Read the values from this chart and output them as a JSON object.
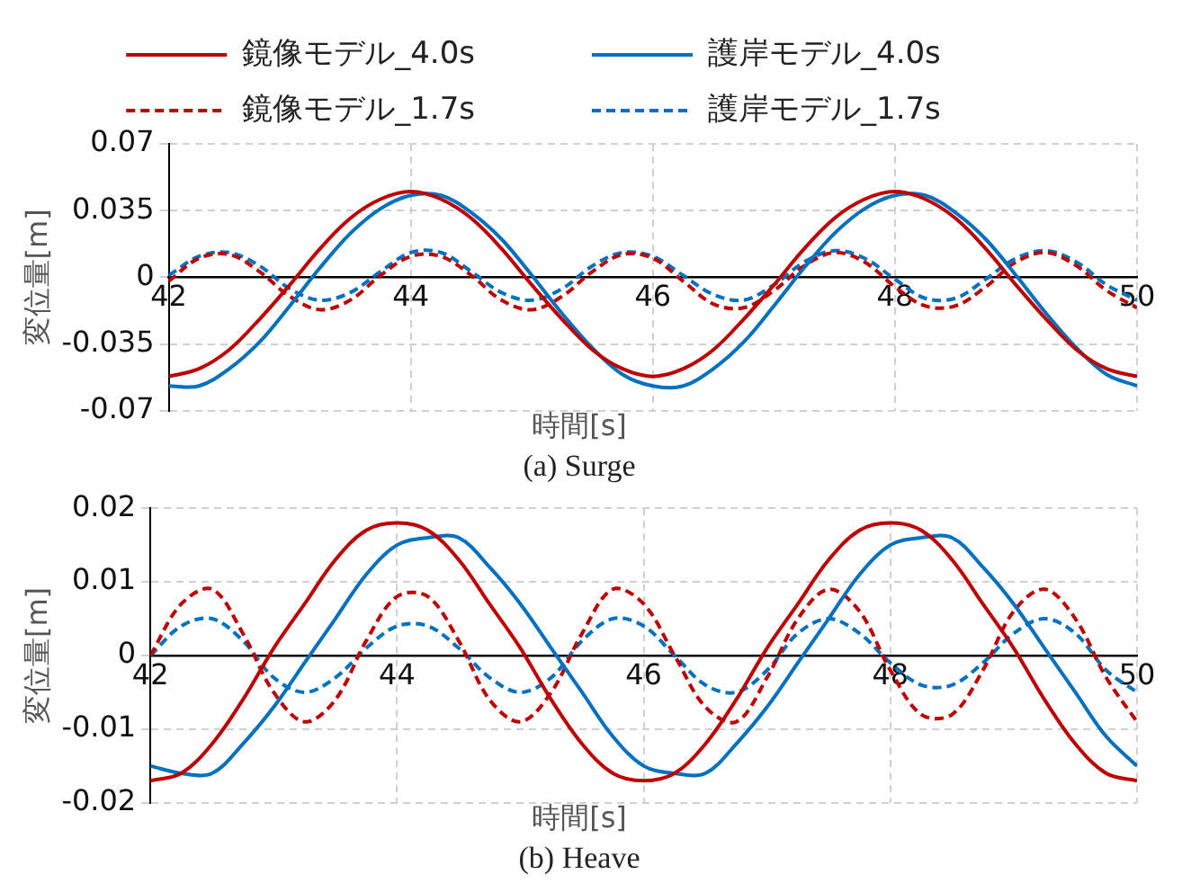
{
  "chart_data": [
    {
      "type": "line",
      "title": "(a) Surge",
      "xlabel": "時間[s]",
      "ylabel": "変位量[m]",
      "x": [
        42,
        42.25,
        42.5,
        42.75,
        43,
        43.25,
        43.5,
        43.75,
        44,
        44.25,
        44.5,
        44.75,
        45,
        45.25,
        45.5,
        45.75,
        46,
        46.25,
        46.5,
        46.75,
        47,
        47.25,
        47.5,
        47.75,
        48,
        48.25,
        48.5,
        48.75,
        49,
        49.25,
        49.5,
        49.75,
        50
      ],
      "xlim": [
        42,
        50
      ],
      "xticks": [
        42,
        44,
        46,
        48,
        50
      ],
      "ylim": [
        -0.07,
        0.07
      ],
      "yticks": [
        -0.07,
        -0.035,
        0,
        0.035,
        0.07
      ],
      "grid": true,
      "legend": "top",
      "marker": "none",
      "series": [
        {
          "name": "鏡像モデル_4.0s",
          "color": "#c00000",
          "line_style": "solid",
          "values": [
            -0.052,
            -0.048,
            -0.038,
            -0.022,
            -0.004,
            0.015,
            0.031,
            0.041,
            0.045,
            0.041,
            0.031,
            0.015,
            -0.004,
            -0.022,
            -0.038,
            -0.048,
            -0.052,
            -0.048,
            -0.038,
            -0.022,
            -0.004,
            0.015,
            0.031,
            0.041,
            0.045,
            0.041,
            0.031,
            0.015,
            -0.004,
            -0.022,
            -0.038,
            -0.048,
            -0.052
          ]
        },
        {
          "name": "護岸モデル_4.0s",
          "color": "#0070c0",
          "line_style": "solid",
          "values": [
            -0.057,
            -0.057,
            -0.048,
            -0.034,
            -0.015,
            0.005,
            0.023,
            0.036,
            0.043,
            0.043,
            0.034,
            0.02,
            0.001,
            -0.019,
            -0.037,
            -0.051,
            -0.057,
            -0.057,
            -0.048,
            -0.034,
            -0.015,
            0.005,
            0.023,
            0.036,
            0.043,
            0.043,
            0.034,
            0.02,
            0.001,
            -0.019,
            -0.037,
            -0.051,
            -0.057
          ]
        },
        {
          "name": "鏡像モデル_1.7s",
          "color": "#c00000",
          "line_style": "dashed",
          "values": [
            -0.002,
            0.01,
            0.012,
            0.003,
            -0.01,
            -0.017,
            -0.012,
            0.001,
            0.011,
            0.011,
            0.001,
            -0.012,
            -0.017,
            -0.01,
            0.003,
            0.012,
            0.01,
            -0.002,
            -0.014,
            -0.016,
            -0.007,
            0.006,
            0.013,
            0.008,
            -0.005,
            -0.015,
            -0.015,
            -0.005,
            0.008,
            0.013,
            0.006,
            -0.007,
            -0.016
          ]
        },
        {
          "name": "護岸モデル_1.7s",
          "color": "#0070c0",
          "line_style": "dashed",
          "values": [
            0.001,
            0.011,
            0.013,
            0.006,
            -0.006,
            -0.012,
            -0.008,
            0.003,
            0.013,
            0.013,
            0.003,
            -0.008,
            -0.012,
            -0.006,
            0.006,
            0.013,
            0.011,
            0.001,
            -0.009,
            -0.012,
            -0.004,
            0.008,
            0.014,
            0.01,
            -0.001,
            -0.011,
            -0.011,
            -0.001,
            0.01,
            0.014,
            0.008,
            -0.004,
            -0.012
          ]
        }
      ]
    },
    {
      "type": "line",
      "title": "(b) Heave",
      "xlabel": "時間[s]",
      "ylabel": "変位量[m]",
      "x": [
        42,
        42.25,
        42.5,
        42.75,
        43,
        43.25,
        43.5,
        43.75,
        44,
        44.25,
        44.5,
        44.75,
        45,
        45.25,
        45.5,
        45.75,
        46,
        46.25,
        46.5,
        46.75,
        47,
        47.25,
        47.5,
        47.75,
        48,
        48.25,
        48.5,
        48.75,
        49,
        49.25,
        49.5,
        49.75,
        50
      ],
      "xlim": [
        42,
        50
      ],
      "xticks": [
        42,
        44,
        46,
        48,
        50
      ],
      "ylim": [
        -0.02,
        0.02
      ],
      "yticks": [
        -0.02,
        -0.01,
        0,
        0.01,
        0.02
      ],
      "grid": true,
      "marker": "none",
      "series": [
        {
          "color": "#c00000",
          "line_style": "solid",
          "values": [
            -0.017,
            -0.016,
            -0.012,
            -0.006,
            0.001,
            0.007,
            0.013,
            0.017,
            0.018,
            0.017,
            0.013,
            0.007,
            0.001,
            -0.006,
            -0.012,
            -0.016,
            -0.017,
            -0.016,
            -0.012,
            -0.006,
            0.001,
            0.007,
            0.013,
            0.017,
            0.018,
            0.017,
            0.013,
            0.007,
            0.001,
            -0.006,
            -0.012,
            -0.016,
            -0.017
          ]
        },
        {
          "color": "#0070c0",
          "line_style": "solid",
          "values": [
            -0.015,
            -0.016,
            -0.016,
            -0.012,
            -0.007,
            -0.001,
            0.005,
            0.011,
            0.015,
            0.016,
            0.016,
            0.012,
            0.007,
            0.001,
            -0.005,
            -0.011,
            -0.015,
            -0.016,
            -0.016,
            -0.012,
            -0.007,
            -0.001,
            0.005,
            0.011,
            0.015,
            0.016,
            0.016,
            0.012,
            0.007,
            0.001,
            -0.005,
            -0.011,
            -0.015
          ]
        },
        {
          "color": "#c00000",
          "line_style": "dashed",
          "values": [
            0,
            0.007,
            0.009,
            0.003,
            -0.005,
            -0.009,
            -0.006,
            0.002,
            0.008,
            0.008,
            0.002,
            -0.006,
            -0.009,
            -0.005,
            0.003,
            0.009,
            0.007,
            0,
            -0.007,
            -0.009,
            -0.003,
            0.005,
            0.009,
            0.006,
            -0.002,
            -0.008,
            -0.008,
            -0.002,
            0.006,
            0.009,
            0.005,
            -0.003,
            -0.009
          ]
        },
        {
          "color": "#0070c0",
          "line_style": "dashed",
          "values": [
            0,
            0.004,
            0.005,
            0.002,
            -0.003,
            -0.005,
            -0.003,
            0.001,
            0.004,
            0.004,
            0.001,
            -0.003,
            -0.005,
            -0.003,
            0.002,
            0.005,
            0.004,
            0,
            -0.004,
            -0.005,
            -0.002,
            0.003,
            0.005,
            0.003,
            -0.001,
            -0.004,
            -0.004,
            -0.001,
            0.003,
            0.005,
            0.003,
            -0.002,
            -0.005
          ]
        }
      ]
    }
  ]
}
